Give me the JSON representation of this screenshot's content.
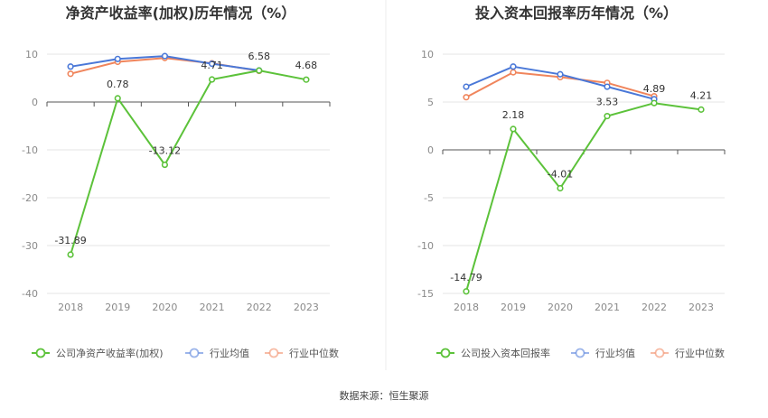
{
  "source_text": "数据来源：恒生聚源",
  "colors": {
    "company": "#5cc23a",
    "industry_avg": "#4a78d8",
    "industry_median": "#f0855c",
    "grid": "#e6e6e6",
    "axis": "#555555"
  },
  "chart_data": [
    {
      "type": "line",
      "title": "净资产收益率(加权)历年情况（%）",
      "categories": [
        "2018",
        "2019",
        "2020",
        "2021",
        "2022",
        "2023"
      ],
      "ylim": [
        -40,
        10
      ],
      "yticks": [
        "10",
        "0",
        "-10",
        "-20",
        "-30",
        "-40"
      ],
      "ytick_values": [
        10,
        0,
        -10,
        -20,
        -30,
        -40
      ],
      "grid": true,
      "legend_position": "bottom",
      "series": [
        {
          "name": "公司净资产收益率(加权)",
          "values": [
            -31.89,
            0.78,
            -13.12,
            4.71,
            6.58,
            4.68
          ],
          "labels": [
            "-31.89",
            "0.78",
            "-13.12",
            "4.71",
            "6.58",
            "4.68"
          ]
        },
        {
          "name": "行业均值",
          "values": [
            7.4,
            9.0,
            9.6,
            8.0,
            6.6,
            null
          ]
        },
        {
          "name": "行业中位数",
          "values": [
            5.9,
            8.4,
            9.2,
            8.1,
            6.5,
            null
          ]
        }
      ]
    },
    {
      "type": "line",
      "title": "投入资本回报率历年情况（%）",
      "categories": [
        "2018",
        "2019",
        "2020",
        "2021",
        "2022",
        "2023"
      ],
      "ylim": [
        -15,
        10
      ],
      "yticks": [
        "10",
        "5",
        "0",
        "-5",
        "-10",
        "-15"
      ],
      "ytick_values": [
        10,
        5,
        0,
        -5,
        -10,
        -15
      ],
      "grid": true,
      "legend_position": "bottom",
      "series": [
        {
          "name": "公司投入资本回报率",
          "values": [
            -14.79,
            2.18,
            -4.01,
            3.53,
            4.89,
            4.21
          ],
          "labels": [
            "-14.79",
            "2.18",
            "-4.01",
            "3.53",
            "4.89",
            "4.21"
          ]
        },
        {
          "name": "行业均值",
          "values": [
            6.6,
            8.7,
            7.9,
            6.6,
            5.3,
            null
          ]
        },
        {
          "name": "行业中位数",
          "values": [
            5.5,
            8.1,
            7.6,
            7.0,
            5.6,
            null
          ]
        }
      ]
    }
  ]
}
